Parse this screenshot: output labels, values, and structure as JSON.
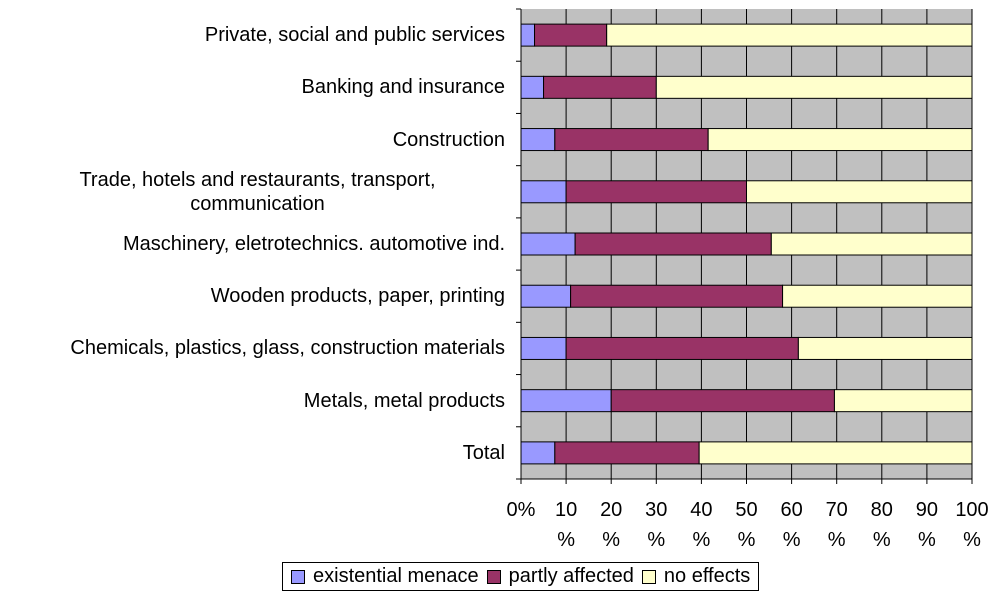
{
  "chart_data": {
    "type": "stacked-bar",
    "categories": [
      "Private, social and public services",
      "Banking and insurance",
      "Construction",
      "Trade, hotels and restaurants, transport, communication",
      "Maschinery, eletrotechnics. automotive ind.",
      "Wooden products, paper, printing",
      "Chemicals, plastics, glass, construction materials",
      "Metals, metal products",
      "Total"
    ],
    "series": [
      {
        "name": "existential menace",
        "color": "#9999ff",
        "values": [
          3,
          5,
          7.5,
          10,
          12,
          11,
          10,
          20,
          7.5
        ]
      },
      {
        "name": "partly affected",
        "color": "#993366",
        "values": [
          16,
          25,
          34,
          40,
          43.5,
          47,
          51.5,
          49.5,
          32
        ]
      },
      {
        "name": "no effects",
        "color": "#ffffcc",
        "values": [
          81,
          70,
          58.5,
          50,
          44.5,
          42,
          38.5,
          30.5,
          60.5
        ]
      }
    ],
    "xlim": [
      0,
      100
    ],
    "xticks": [
      {
        "value": 0,
        "label": "0%"
      },
      {
        "value": 10,
        "label": "10 %"
      },
      {
        "value": 20,
        "label": "20 %"
      },
      {
        "value": 30,
        "label": "30 %"
      },
      {
        "value": 40,
        "label": "40 %"
      },
      {
        "value": 50,
        "label": "50 %"
      },
      {
        "value": 60,
        "label": "60 %"
      },
      {
        "value": 70,
        "label": "70 %"
      },
      {
        "value": 80,
        "label": "80 %"
      },
      {
        "value": 90,
        "label": "90 %"
      },
      {
        "value": 100,
        "label": "100 %"
      }
    ],
    "grid": true
  }
}
